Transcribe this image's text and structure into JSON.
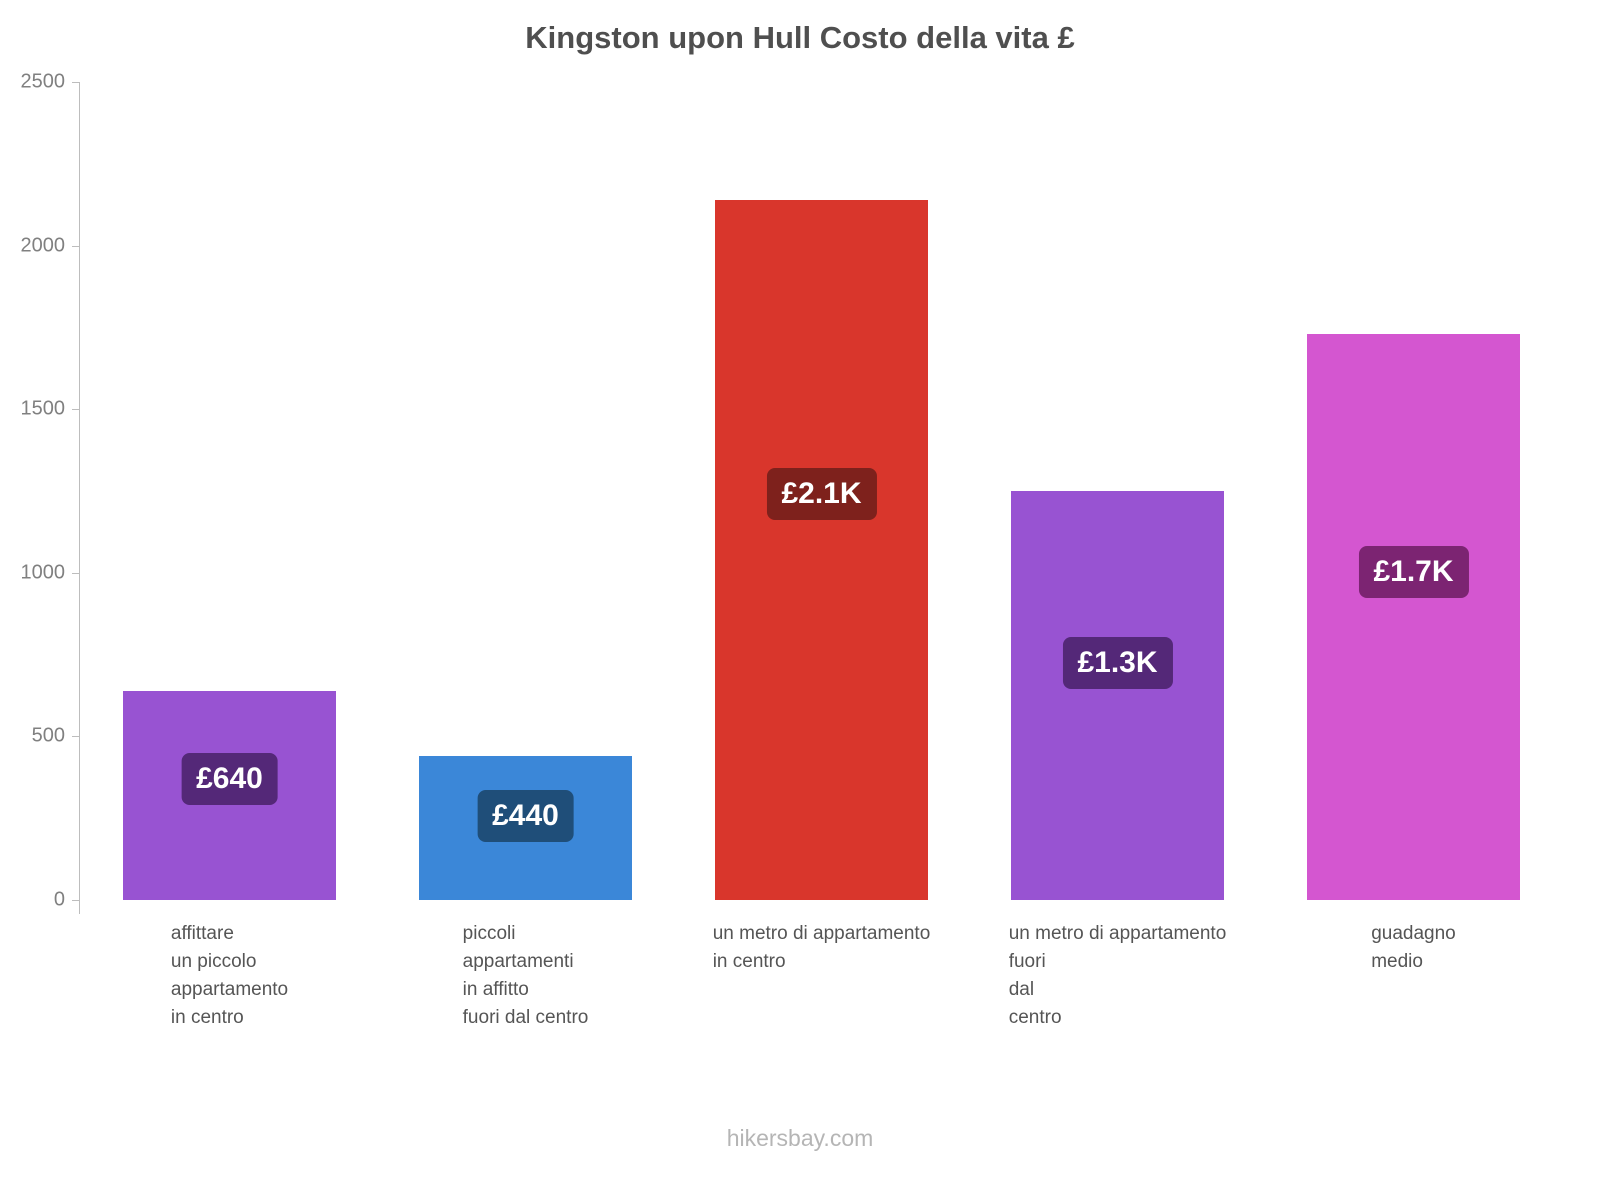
{
  "title": "Kingston upon Hull Costo della vita £",
  "footer": "hikersbay.com",
  "chart_data": {
    "type": "bar",
    "title": "Kingston upon Hull Costo della vita £",
    "categories": [
      "affittare un piccolo appartamento in centro",
      "piccoli appartamenti in affitto fuori dal centro",
      "un metro di appartamento in centro",
      "un metro di appartamento fuori dal centro",
      "guadagno medio"
    ],
    "category_lines": [
      [
        "affittare",
        "un piccolo",
        "appartamento",
        "in centro"
      ],
      [
        "piccoli",
        "appartamenti",
        "in affitto",
        "fuori dal centro"
      ],
      [
        "un metro di appartamento",
        "in centro"
      ],
      [
        "un metro di appartamento",
        "fuori",
        "dal",
        "centro"
      ],
      [
        "guadagno",
        "medio"
      ]
    ],
    "values": [
      640,
      440,
      2140,
      1250,
      1730
    ],
    "value_labels": [
      "£640",
      "£440",
      "£2.1K",
      "£1.3K",
      "£1.7K"
    ],
    "bar_colors": [
      "#9853d2",
      "#3b87d8",
      "#d9362c",
      "#9853d2",
      "#d456d0"
    ],
    "value_label_bg_colors": [
      "#542878",
      "#1f4e79",
      "#7e211c",
      "#542878",
      "#7c2472"
    ],
    "ylabel": "",
    "xlabel": "",
    "ylim": [
      0,
      2500
    ],
    "yticks": [
      0,
      500,
      1000,
      1500,
      2000,
      2500
    ],
    "grid": false,
    "legend": false,
    "axis_color": "#bdbdbd",
    "tick_label_color": "#808080"
  }
}
